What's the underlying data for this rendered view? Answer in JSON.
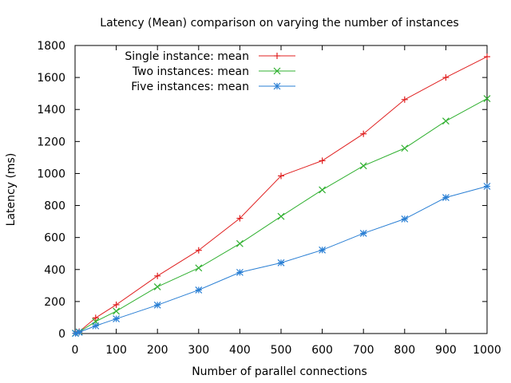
{
  "chart_data": {
    "type": "line",
    "title": "Latency (Mean) comparison on varying the number of instances",
    "xlabel": "Number of parallel connections",
    "ylabel": "Latency (ms)",
    "xlim": [
      0,
      1000
    ],
    "ylim": [
      0,
      1800
    ],
    "xticks": [
      0,
      100,
      200,
      300,
      400,
      500,
      600,
      700,
      800,
      900,
      1000
    ],
    "yticks": [
      0,
      200,
      400,
      600,
      800,
      1000,
      1200,
      1400,
      1600,
      1800
    ],
    "grid": false,
    "legend_position": "top-left",
    "x": [
      1,
      10,
      50,
      100,
      200,
      300,
      400,
      500,
      600,
      700,
      800,
      900,
      1000
    ],
    "series": [
      {
        "name": "Single instance: mean",
        "color": "#e02020",
        "marker": "plus",
        "values": [
          2,
          12,
          98,
          180,
          360,
          520,
          720,
          985,
          1080,
          1248,
          1462,
          1600,
          1730
        ]
      },
      {
        "name": "Two instances: mean",
        "color": "#30b030",
        "marker": "cross",
        "values": [
          2,
          10,
          75,
          140,
          292,
          410,
          562,
          732,
          898,
          1048,
          1158,
          1328,
          1468
        ]
      },
      {
        "name": "Five instances: mean",
        "color": "#2a7fd4",
        "marker": "star",
        "values": [
          1,
          8,
          48,
          92,
          178,
          272,
          382,
          442,
          522,
          626,
          716,
          850,
          920
        ]
      }
    ]
  }
}
